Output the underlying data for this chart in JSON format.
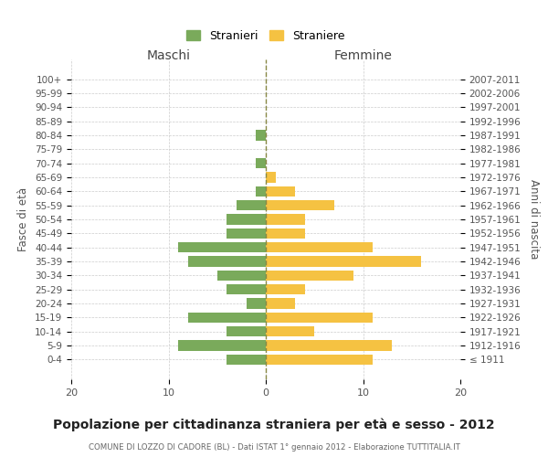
{
  "age_groups": [
    "100+",
    "95-99",
    "90-94",
    "85-89",
    "80-84",
    "75-79",
    "70-74",
    "65-69",
    "60-64",
    "55-59",
    "50-54",
    "45-49",
    "40-44",
    "35-39",
    "30-34",
    "25-29",
    "20-24",
    "15-19",
    "10-14",
    "5-9",
    "0-4"
  ],
  "birth_years": [
    "≤ 1911",
    "1912-1916",
    "1917-1921",
    "1922-1926",
    "1927-1931",
    "1932-1936",
    "1937-1941",
    "1942-1946",
    "1947-1951",
    "1952-1956",
    "1957-1961",
    "1962-1966",
    "1967-1971",
    "1972-1976",
    "1977-1981",
    "1982-1986",
    "1987-1991",
    "1992-1996",
    "1997-2001",
    "2002-2006",
    "2007-2011"
  ],
  "males": [
    0,
    0,
    0,
    0,
    1,
    0,
    1,
    0,
    1,
    3,
    4,
    4,
    9,
    8,
    5,
    4,
    2,
    8,
    4,
    9,
    4
  ],
  "females": [
    0,
    0,
    0,
    0,
    0,
    0,
    0,
    1,
    3,
    7,
    4,
    4,
    11,
    16,
    9,
    4,
    3,
    11,
    5,
    13,
    11
  ],
  "male_color": "#7aaa5b",
  "female_color": "#f5c242",
  "background_color": "#ffffff",
  "grid_color": "#cccccc",
  "title": "Popolazione per cittadinanza straniera per età e sesso - 2012",
  "subtitle": "COMUNE DI LOZZO DI CADORE (BL) - Dati ISTAT 1° gennaio 2012 - Elaborazione TUTTITALIA.IT",
  "xlabel_left": "Maschi",
  "xlabel_right": "Femmine",
  "ylabel_left": "Fasce di età",
  "ylabel_right": "Anni di nascita",
  "legend_male": "Stranieri",
  "legend_female": "Straniere",
  "xlim": 20,
  "dashed_line_color": "#888844"
}
